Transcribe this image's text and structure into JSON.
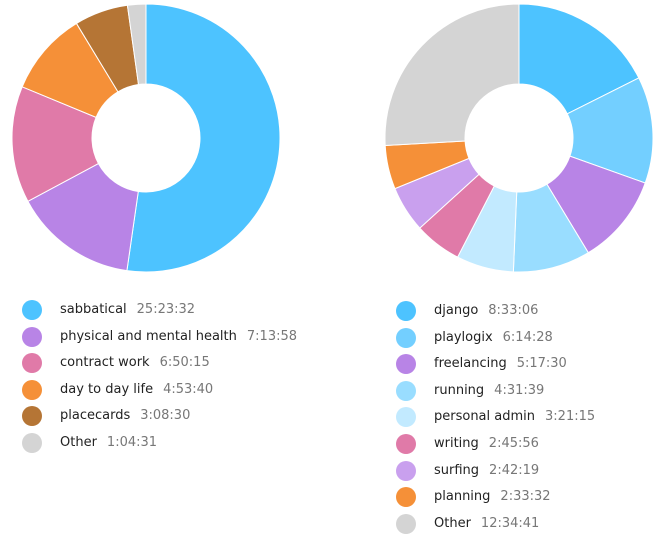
{
  "chart_data": [
    {
      "type": "pie",
      "series": [
        {
          "name": "sabbatical",
          "duration": "25:23:32",
          "value": 91412,
          "color": "#4dc3ff"
        },
        {
          "name": "physical and mental health",
          "duration": "7:13:58",
          "value": 26038,
          "color": "#b884e6"
        },
        {
          "name": "contract work",
          "duration": "6:50:15",
          "value": 24615,
          "color": "#e07aa8"
        },
        {
          "name": "day to day life",
          "duration": "4:53:40",
          "value": 17620,
          "color": "#f59038"
        },
        {
          "name": "placecards",
          "duration": "3:08:30",
          "value": 11310,
          "color": "#b57535"
        },
        {
          "name": "Other",
          "duration": "1:04:31",
          "value": 3871,
          "color": "#d4d4d4"
        }
      ]
    },
    {
      "type": "pie",
      "series": [
        {
          "name": "django",
          "duration": "8:33:06",
          "value": 30786,
          "color": "#4dc3ff"
        },
        {
          "name": "playlogix",
          "duration": "6:14:28",
          "value": 22468,
          "color": "#73cfff"
        },
        {
          "name": "freelancing",
          "duration": "5:17:30",
          "value": 19050,
          "color": "#b884e6"
        },
        {
          "name": "running",
          "duration": "4:31:39",
          "value": 16299,
          "color": "#99ddff"
        },
        {
          "name": "personal admin",
          "duration": "3:21:15",
          "value": 12075,
          "color": "#c2eaff"
        },
        {
          "name": "writing",
          "duration": "2:45:56",
          "value": 9956,
          "color": "#e07aa8"
        },
        {
          "name": "surfing",
          "duration": "2:42:19",
          "value": 9739,
          "color": "#c9a0ee"
        },
        {
          "name": "planning",
          "duration": "2:33:32",
          "value": 9212,
          "color": "#f59038"
        },
        {
          "name": "Other",
          "duration": "12:34:41",
          "value": 45281,
          "color": "#d4d4d4"
        }
      ]
    }
  ]
}
